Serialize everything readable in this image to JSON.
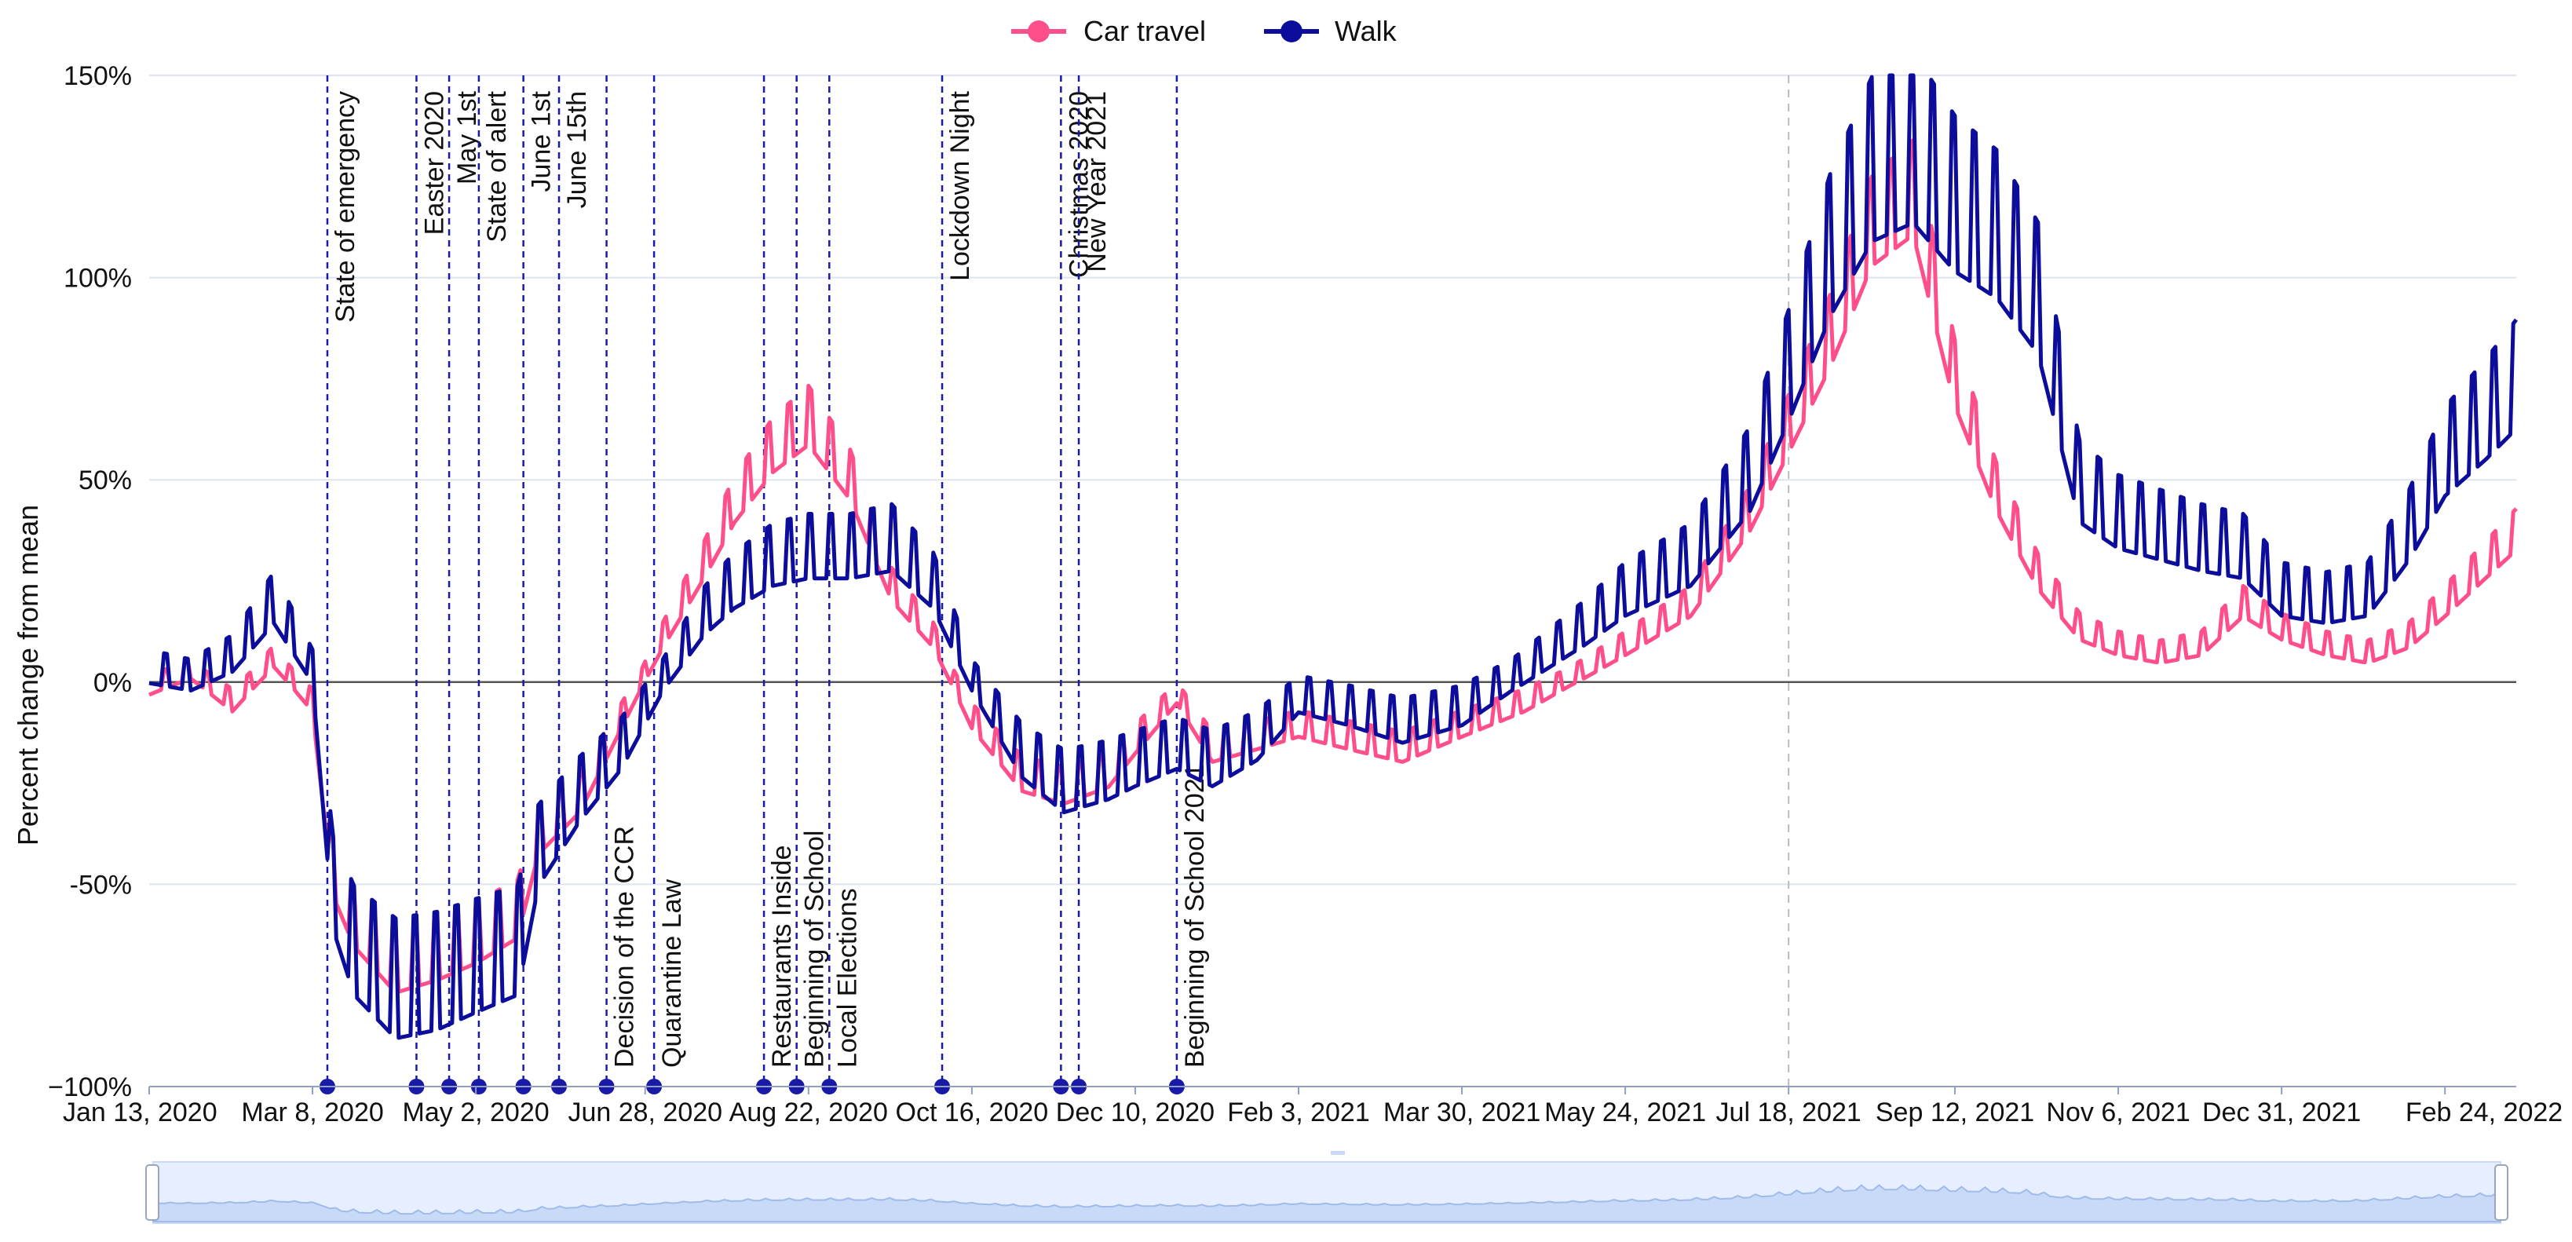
{
  "chart_data": {
    "type": "line",
    "title": "",
    "xlabel": "",
    "ylabel": "Percent change from mean",
    "ylim": [
      -100,
      150
    ],
    "x_start": "2020-01-13",
    "x_end": "2022-03-20",
    "y_ticks": [
      {
        "value": 150,
        "label": "150%"
      },
      {
        "value": 100,
        "label": "100%"
      },
      {
        "value": 50,
        "label": "50%"
      },
      {
        "value": 0,
        "label": "0%"
      },
      {
        "value": -50,
        "label": "-50%"
      },
      {
        "value": -100,
        "label": "−100%"
      }
    ],
    "x_ticks": [
      {
        "date": "2020-01-13",
        "label": "Jan 13, 2020"
      },
      {
        "date": "2020-03-08",
        "label": "Mar 8, 2020"
      },
      {
        "date": "2020-05-02",
        "label": "May 2, 2020"
      },
      {
        "date": "2020-06-28",
        "label": "Jun 28, 2020"
      },
      {
        "date": "2020-08-22",
        "label": "Aug 22, 2020"
      },
      {
        "date": "2020-10-16",
        "label": "Oct 16, 2020"
      },
      {
        "date": "2020-12-10",
        "label": "Dec 10, 2020"
      },
      {
        "date": "2021-02-03",
        "label": "Feb 3, 2021"
      },
      {
        "date": "2021-03-30",
        "label": "Mar 30, 2021"
      },
      {
        "date": "2021-05-24",
        "label": "May 24, 2021"
      },
      {
        "date": "2021-07-18",
        "label": "Jul 18, 2021"
      },
      {
        "date": "2021-09-12",
        "label": "Sep 12, 2021"
      },
      {
        "date": "2021-11-06",
        "label": "Nov 6, 2021"
      },
      {
        "date": "2021-12-31",
        "label": "Dec 31, 2021"
      },
      {
        "date": "2022-02-24",
        "label": "Feb 24, 2022"
      }
    ],
    "legend": {
      "position": "top-center"
    },
    "series": [
      {
        "name": "Car travel",
        "color": "#ff4f8b",
        "points": [
          [
            "2020-01-13",
            -2
          ],
          [
            "2020-01-27",
            2
          ],
          [
            "2020-02-10",
            -6
          ],
          [
            "2020-02-24",
            5
          ],
          [
            "2020-03-08",
            -6
          ],
          [
            "2020-03-15",
            -50
          ],
          [
            "2020-03-22",
            -62
          ],
          [
            "2020-04-05",
            -73
          ],
          [
            "2020-04-19",
            -70
          ],
          [
            "2020-05-02",
            -66
          ],
          [
            "2020-05-16",
            -60
          ],
          [
            "2020-05-23",
            -40
          ],
          [
            "2020-06-06",
            -30
          ],
          [
            "2020-06-20",
            -10
          ],
          [
            "2020-07-04",
            10
          ],
          [
            "2020-07-18",
            28
          ],
          [
            "2020-07-28",
            42
          ],
          [
            "2020-08-10",
            55
          ],
          [
            "2020-08-22",
            62
          ],
          [
            "2020-09-05",
            48
          ],
          [
            "2020-09-19",
            22
          ],
          [
            "2020-10-03",
            10
          ],
          [
            "2020-10-16",
            -10
          ],
          [
            "2020-11-02",
            -25
          ],
          [
            "2020-11-16",
            -28
          ],
          [
            "2020-12-01",
            -24
          ],
          [
            "2020-12-10",
            -16
          ],
          [
            "2020-12-24",
            -4
          ],
          [
            "2021-01-05",
            -18
          ],
          [
            "2021-01-20",
            -15
          ],
          [
            "2021-02-03",
            -12
          ],
          [
            "2021-02-20",
            -15
          ],
          [
            "2021-03-10",
            -18
          ],
          [
            "2021-03-30",
            -12
          ],
          [
            "2021-04-20",
            -6
          ],
          [
            "2021-05-10",
            2
          ],
          [
            "2021-05-24",
            8
          ],
          [
            "2021-06-15",
            18
          ],
          [
            "2021-07-05",
            40
          ],
          [
            "2021-07-18",
            60
          ],
          [
            "2021-08-01",
            82
          ],
          [
            "2021-08-15",
            108
          ],
          [
            "2021-08-29",
            116
          ],
          [
            "2021-09-12",
            72
          ],
          [
            "2021-09-26",
            45
          ],
          [
            "2021-10-10",
            25
          ],
          [
            "2021-10-24",
            12
          ],
          [
            "2021-11-06",
            8
          ],
          [
            "2021-11-20",
            6
          ],
          [
            "2021-12-04",
            8
          ],
          [
            "2021-12-18",
            18
          ],
          [
            "2021-12-31",
            12
          ],
          [
            "2022-01-15",
            8
          ],
          [
            "2022-01-29",
            6
          ],
          [
            "2022-02-12",
            10
          ],
          [
            "2022-02-24",
            18
          ],
          [
            "2022-03-10",
            28
          ],
          [
            "2022-03-20",
            35
          ]
        ]
      },
      {
        "name": "Walk",
        "color": "#0d0d9c",
        "points": [
          [
            "2020-01-13",
            2
          ],
          [
            "2020-01-27",
            0
          ],
          [
            "2020-02-10",
            5
          ],
          [
            "2020-02-24",
            18
          ],
          [
            "2020-03-08",
            2
          ],
          [
            "2020-03-15",
            -55
          ],
          [
            "2020-03-22",
            -70
          ],
          [
            "2020-04-05",
            -80
          ],
          [
            "2020-04-19",
            -78
          ],
          [
            "2020-05-02",
            -74
          ],
          [
            "2020-05-16",
            -70
          ],
          [
            "2020-05-23",
            -45
          ],
          [
            "2020-06-06",
            -30
          ],
          [
            "2020-06-20",
            -18
          ],
          [
            "2020-07-04",
            0
          ],
          [
            "2020-07-18",
            15
          ],
          [
            "2020-07-28",
            22
          ],
          [
            "2020-08-10",
            28
          ],
          [
            "2020-08-22",
            30
          ],
          [
            "2020-09-05",
            30
          ],
          [
            "2020-09-19",
            32
          ],
          [
            "2020-10-03",
            22
          ],
          [
            "2020-10-16",
            0
          ],
          [
            "2020-11-02",
            -20
          ],
          [
            "2020-11-16",
            -28
          ],
          [
            "2020-12-01",
            -25
          ],
          [
            "2020-12-10",
            -22
          ],
          [
            "2020-12-24",
            -18
          ],
          [
            "2021-01-05",
            -22
          ],
          [
            "2021-01-20",
            -16
          ],
          [
            "2021-02-03",
            -5
          ],
          [
            "2021-02-20",
            -8
          ],
          [
            "2021-03-10",
            -12
          ],
          [
            "2021-03-30",
            -8
          ],
          [
            "2021-04-20",
            2
          ],
          [
            "2021-05-10",
            12
          ],
          [
            "2021-05-24",
            20
          ],
          [
            "2021-06-15",
            28
          ],
          [
            "2021-07-05",
            48
          ],
          [
            "2021-07-18",
            72
          ],
          [
            "2021-08-01",
            100
          ],
          [
            "2021-08-15",
            120
          ],
          [
            "2021-08-29",
            125
          ],
          [
            "2021-09-12",
            112
          ],
          [
            "2021-09-26",
            105
          ],
          [
            "2021-10-10",
            90
          ],
          [
            "2021-10-24",
            45
          ],
          [
            "2021-11-06",
            38
          ],
          [
            "2021-11-20",
            35
          ],
          [
            "2021-12-04",
            32
          ],
          [
            "2021-12-18",
            30
          ],
          [
            "2021-12-31",
            20
          ],
          [
            "2022-01-15",
            18
          ],
          [
            "2022-01-29",
            20
          ],
          [
            "2022-02-12",
            35
          ],
          [
            "2022-02-24",
            52
          ],
          [
            "2022-03-10",
            62
          ],
          [
            "2022-03-20",
            70
          ]
        ]
      }
    ],
    "events": [
      {
        "date": "2020-03-13",
        "label": "State of emergency",
        "side": "top"
      },
      {
        "date": "2020-04-12",
        "label": "Easter 2020",
        "side": "top"
      },
      {
        "date": "2020-04-23",
        "label": "May 1st",
        "side": "top"
      },
      {
        "date": "2020-05-03",
        "label": "State of alert",
        "side": "top"
      },
      {
        "date": "2020-05-18",
        "label": "June 1st",
        "side": "top"
      },
      {
        "date": "2020-05-30",
        "label": "June 15th",
        "side": "top"
      },
      {
        "date": "2020-06-15",
        "label": "Decision of the CCR",
        "side": "bottom"
      },
      {
        "date": "2020-07-01",
        "label": "Quarantine Law",
        "side": "bottom"
      },
      {
        "date": "2020-08-07",
        "label": "Restaurants Inside",
        "side": "bottom"
      },
      {
        "date": "2020-08-18",
        "label": "Beginning of School",
        "side": "bottom"
      },
      {
        "date": "2020-08-29",
        "label": "Local Elections",
        "side": "bottom"
      },
      {
        "date": "2020-10-06",
        "label": "Lockdown Night",
        "side": "top"
      },
      {
        "date": "2020-11-15",
        "label": "Christmas 2020",
        "side": "top"
      },
      {
        "date": "2020-11-21",
        "label": "New Year 2021",
        "side": "top"
      },
      {
        "date": "2020-12-24",
        "label": "Beginning of School 2021",
        "side": "bottom"
      }
    ],
    "crosshair_date": "2021-07-18"
  }
}
